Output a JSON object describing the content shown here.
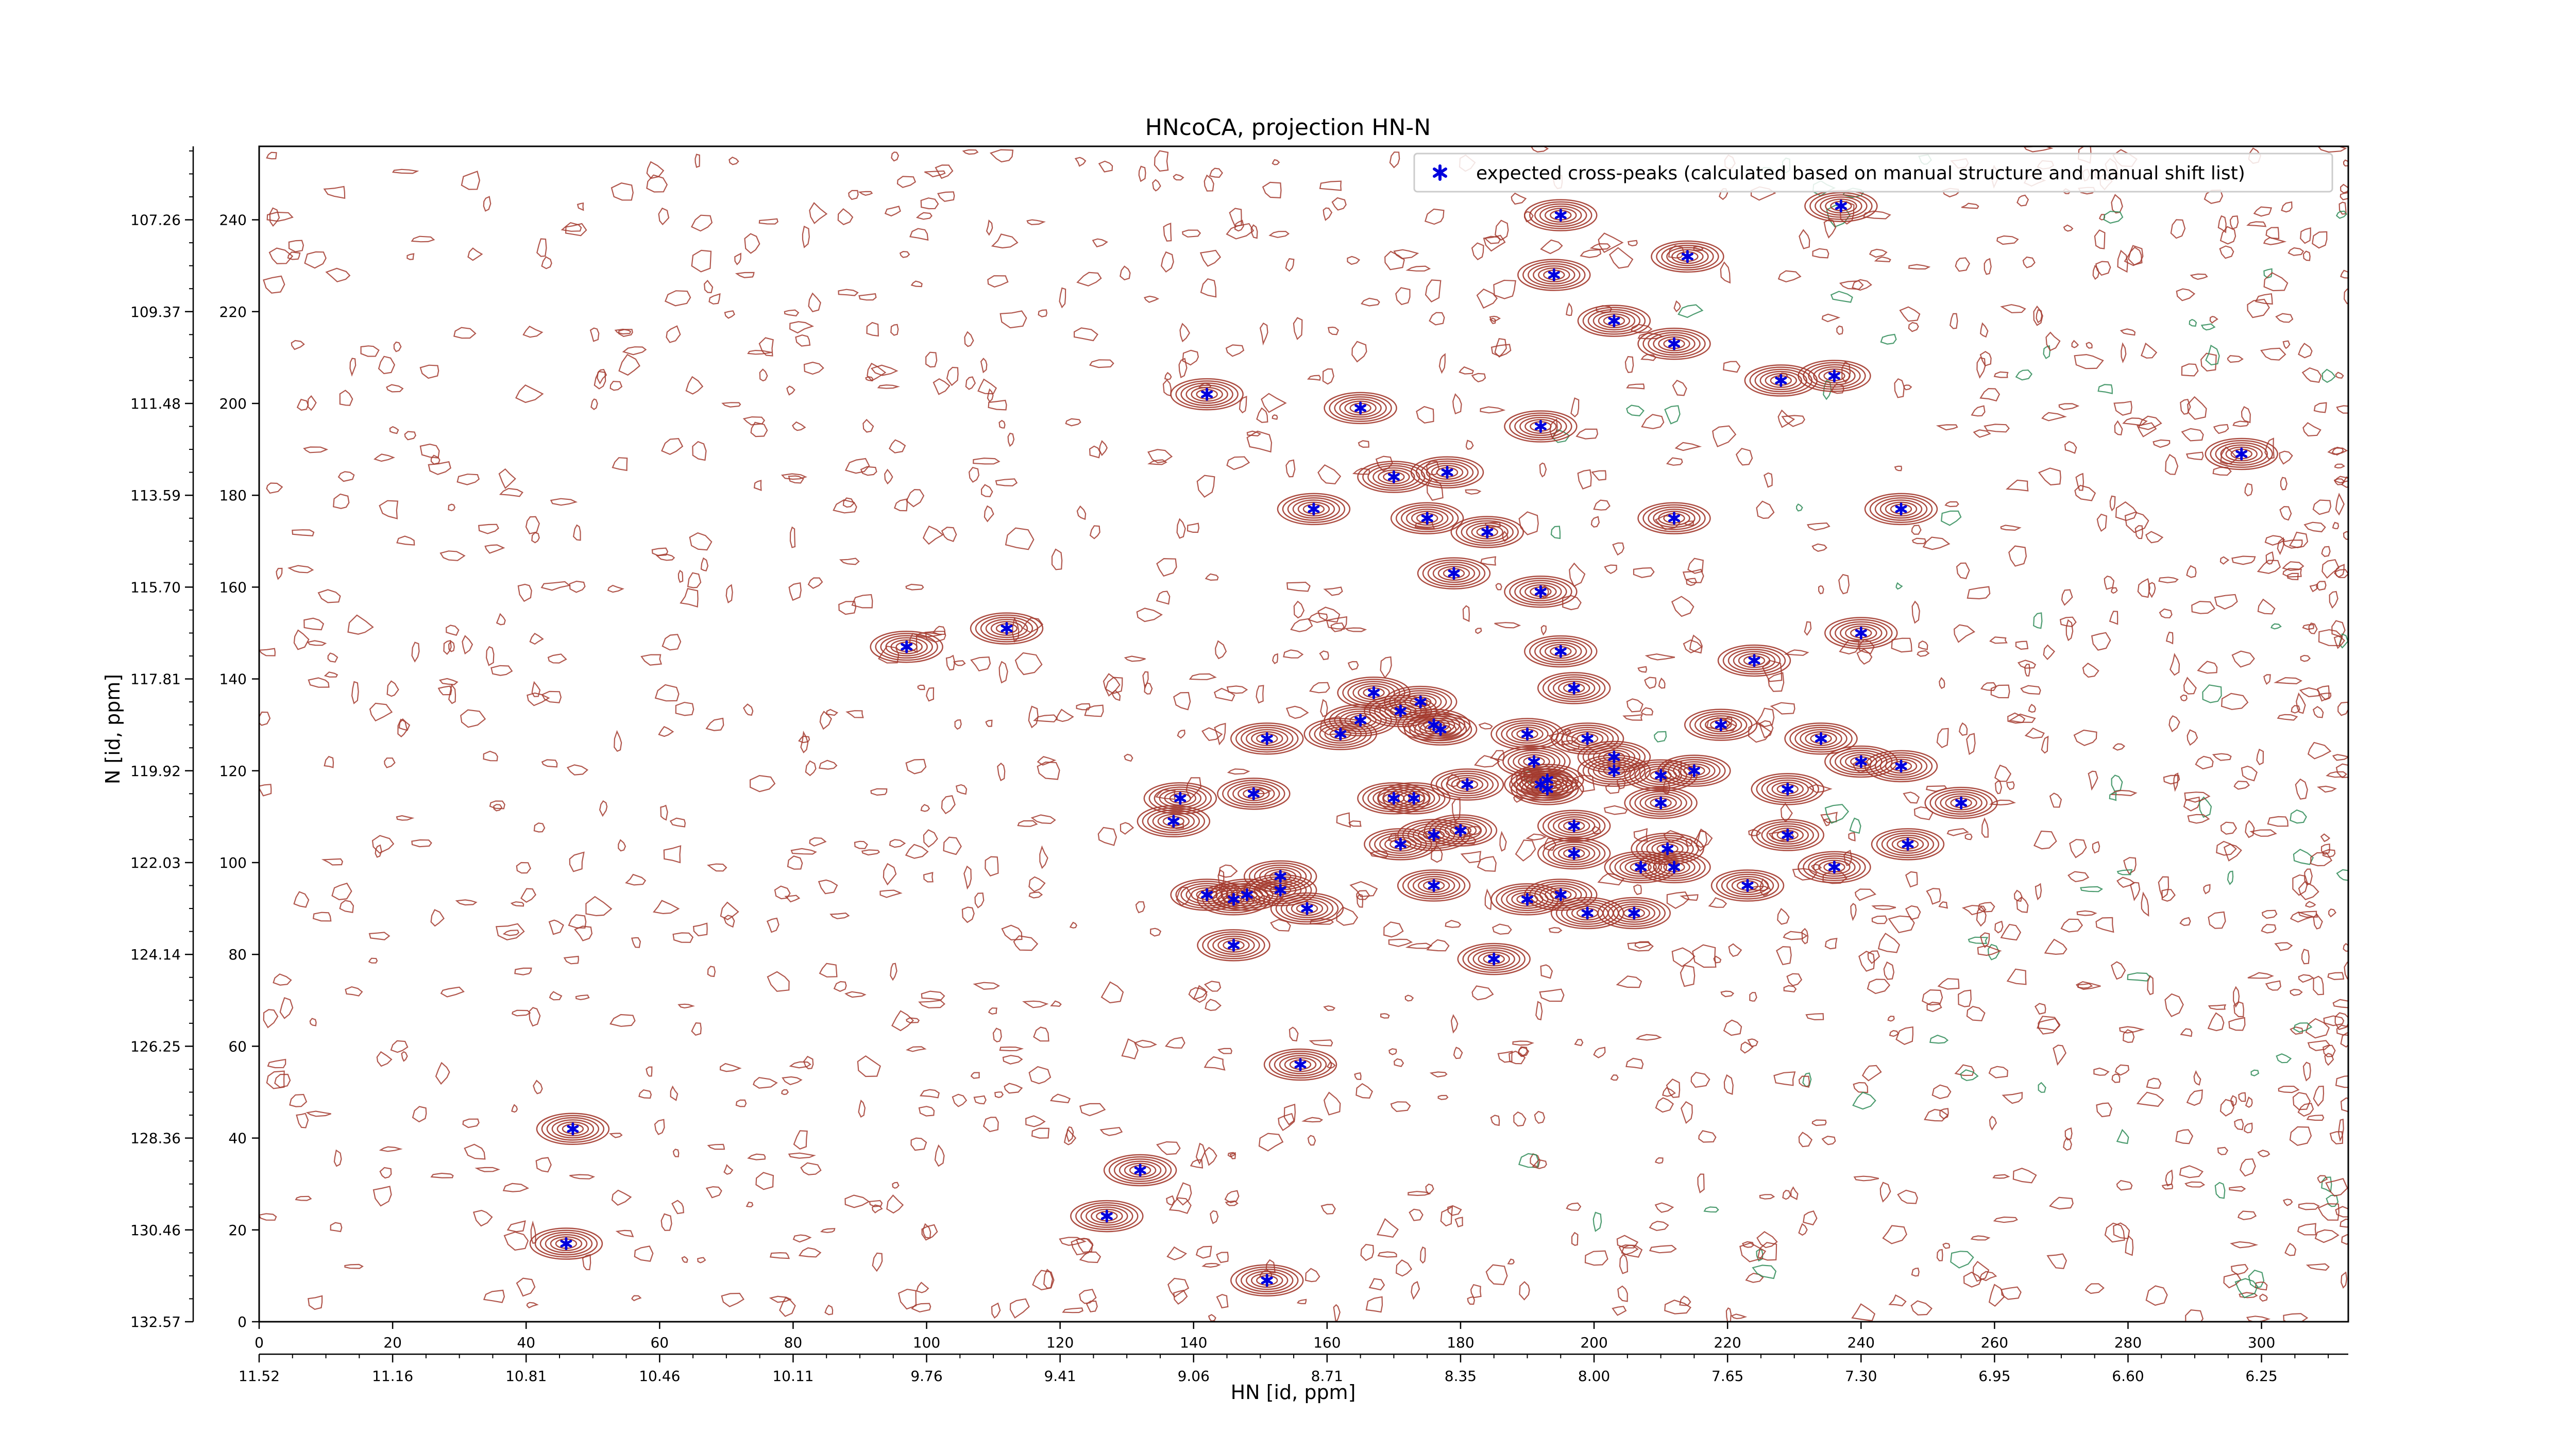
{
  "chart_data": {
    "type": "scatter",
    "title": "HNcoCA, projection HN-N",
    "xlabel": "HN [id, ppm]",
    "ylabel": "N [id, ppm]",
    "x_index_range": [
      0,
      313
    ],
    "y_index_range": [
      0,
      256
    ],
    "x_index_ticks": [
      0,
      20,
      40,
      60,
      80,
      100,
      120,
      140,
      160,
      180,
      200,
      220,
      240,
      260,
      280,
      300
    ],
    "x_ppm_ticks": [
      "11.52",
      "11.16",
      "10.81",
      "10.46",
      "10.11",
      "9.76",
      "9.41",
      "9.06",
      "8.71",
      "8.35",
      "8.00",
      "7.65",
      "7.30",
      "6.95",
      "6.60",
      "6.25"
    ],
    "y_index_ticks": [
      0,
      20,
      40,
      60,
      80,
      100,
      120,
      140,
      160,
      180,
      200,
      220,
      240
    ],
    "y_ppm_ticks": [
      "132.57",
      "130.46",
      "128.36",
      "126.25",
      "124.14",
      "122.03",
      "119.92",
      "117.81",
      "115.70",
      "113.59",
      "111.48",
      "109.37",
      "107.26"
    ],
    "legend": {
      "label": "expected cross-peaks (calculated based on manual structure and manual shift list)",
      "position": "top-right"
    },
    "colors": {
      "contour_positive": "#a33a2e",
      "contour_negative": "#2e8b57",
      "marker": "#0000dd"
    },
    "series": [
      {
        "name": "expected cross-peaks (calculated based on manual structure and manual shift list)",
        "points": [
          [
            195,
            241
          ],
          [
            237,
            243
          ],
          [
            214,
            232
          ],
          [
            194,
            228
          ],
          [
            203,
            218
          ],
          [
            212,
            213
          ],
          [
            228,
            205
          ],
          [
            236,
            206
          ],
          [
            142,
            202
          ],
          [
            165,
            199
          ],
          [
            192,
            195
          ],
          [
            297,
            189
          ],
          [
            170,
            184
          ],
          [
            178,
            185
          ],
          [
            158,
            177
          ],
          [
            175,
            175
          ],
          [
            184,
            172
          ],
          [
            212,
            175
          ],
          [
            246,
            177
          ],
          [
            179,
            163
          ],
          [
            192,
            159
          ],
          [
            112,
            151
          ],
          [
            97,
            147
          ],
          [
            240,
            150
          ],
          [
            195,
            146
          ],
          [
            224,
            144
          ],
          [
            197,
            138
          ],
          [
            167,
            137
          ],
          [
            171,
            133
          ],
          [
            174,
            135
          ],
          [
            176,
            130
          ],
          [
            165,
            131
          ],
          [
            162,
            128
          ],
          [
            177,
            129
          ],
          [
            151,
            127
          ],
          [
            190,
            128
          ],
          [
            199,
            127
          ],
          [
            219,
            130
          ],
          [
            234,
            127
          ],
          [
            191,
            122
          ],
          [
            203,
            123
          ],
          [
            203,
            120
          ],
          [
            240,
            122
          ],
          [
            246,
            121
          ],
          [
            192,
            117
          ],
          [
            193,
            118
          ],
          [
            193,
            116
          ],
          [
            210,
            119
          ],
          [
            215,
            120
          ],
          [
            181,
            117
          ],
          [
            229,
            116
          ],
          [
            138,
            114
          ],
          [
            149,
            115
          ],
          [
            170,
            114
          ],
          [
            173,
            114
          ],
          [
            255,
            113
          ],
          [
            210,
            113
          ],
          [
            137,
            109
          ],
          [
            176,
            106
          ],
          [
            180,
            107
          ],
          [
            197,
            108
          ],
          [
            229,
            106
          ],
          [
            211,
            103
          ],
          [
            247,
            104
          ],
          [
            171,
            104
          ],
          [
            197,
            102
          ],
          [
            212,
            99
          ],
          [
            207,
            99
          ],
          [
            236,
            99
          ],
          [
            223,
            95
          ],
          [
            176,
            95
          ],
          [
            142,
            93
          ],
          [
            146,
            92
          ],
          [
            148,
            93
          ],
          [
            153,
            97
          ],
          [
            153,
            94
          ],
          [
            157,
            90
          ],
          [
            190,
            92
          ],
          [
            195,
            93
          ],
          [
            199,
            89
          ],
          [
            206,
            89
          ],
          [
            146,
            82
          ],
          [
            185,
            79
          ],
          [
            156,
            56
          ],
          [
            47,
            42
          ],
          [
            132,
            33
          ],
          [
            127,
            23
          ],
          [
            46,
            17
          ],
          [
            151,
            9
          ]
        ]
      }
    ]
  }
}
